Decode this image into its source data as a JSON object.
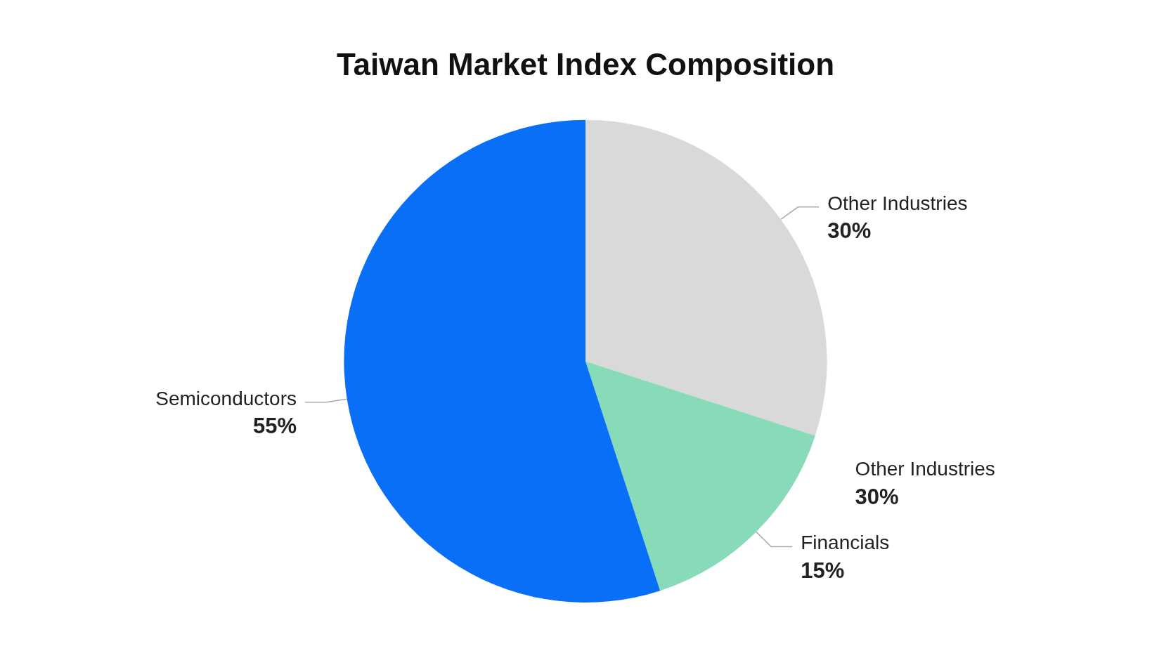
{
  "chart_data": {
    "type": "pie",
    "title": "Taiwan Market Index Composition",
    "categories": [
      "Other Industries",
      "Financials",
      "Semiconductors"
    ],
    "values": [
      30,
      15,
      55
    ],
    "value_labels": [
      "30%",
      "15%",
      "55%"
    ],
    "colors": [
      "#d9d9d9",
      "#88dbb8",
      "#0a6ff7"
    ],
    "annotations": [
      "Other Industries\n30%"
    ],
    "legend": false
  }
}
